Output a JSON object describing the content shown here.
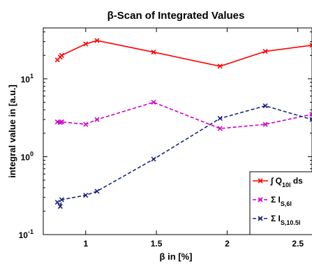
{
  "chart_data": {
    "type": "line",
    "title": "β-Scan of Integrated Values",
    "xlabel": "β in [%]",
    "ylabel": "integral value in [a.u.]",
    "yscale": "log",
    "xlim": [
      0.7,
      2.6
    ],
    "ylim": [
      0.1,
      45
    ],
    "x_ticks": [
      {
        "value": 1,
        "label": "1"
      },
      {
        "value": 1.5,
        "label": "1.5"
      },
      {
        "value": 2,
        "label": "2"
      },
      {
        "value": 2.5,
        "label": "2.5"
      }
    ],
    "y_ticks": [
      {
        "value": 0.1,
        "base": "10",
        "exp": "-1"
      },
      {
        "value": 1,
        "base": "10",
        "exp": "0"
      },
      {
        "value": 10,
        "base": "10",
        "exp": "1"
      }
    ],
    "grid": false,
    "legend_position": "bottom-right",
    "series": [
      {
        "name_prefix": "∫ Q",
        "name_sub": "10l",
        "name_suffix": " ds",
        "color": "#ff0000",
        "x": [
          0.8,
          0.82,
          0.83,
          1.0,
          1.08,
          1.48,
          1.95,
          2.27,
          2.6
        ],
        "y": [
          17.5,
          19.0,
          20.0,
          28.0,
          31.0,
          22.0,
          14.5,
          22.5,
          27.0
        ]
      },
      {
        "name_prefix": "Σ I",
        "name_sub": "S,6l",
        "name_suffix": "",
        "color": "#cc00cc",
        "x": [
          0.8,
          0.82,
          0.83,
          1.0,
          1.08,
          1.48,
          1.95,
          2.27,
          2.6
        ],
        "y": [
          2.8,
          2.75,
          2.8,
          2.6,
          3.0,
          5.0,
          2.3,
          2.6,
          3.5
        ]
      },
      {
        "name_prefix": "Σ I",
        "name_sub": "S,10.5l",
        "name_suffix": "",
        "color": "#1a237e",
        "x": [
          0.8,
          0.82,
          0.83,
          1.0,
          1.08,
          1.48,
          1.95,
          2.27,
          2.6
        ],
        "y": [
          0.26,
          0.23,
          0.28,
          0.32,
          0.36,
          0.93,
          3.1,
          4.5,
          3.0
        ]
      }
    ]
  }
}
